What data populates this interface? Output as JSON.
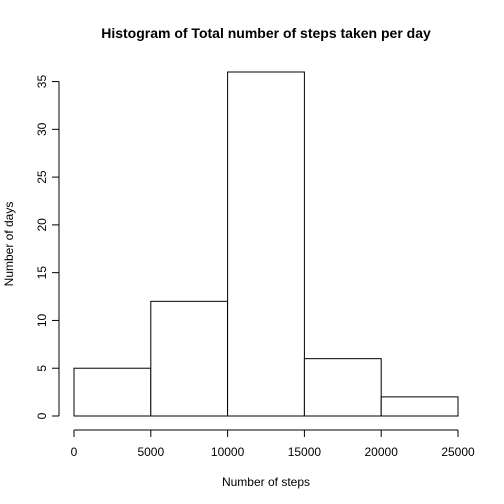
{
  "chart_data": {
    "type": "bar",
    "title": "Histogram of Total number of steps taken per day",
    "xlabel": "Number of steps",
    "ylabel": "Number of days",
    "bins": [
      {
        "from": 0,
        "to": 5000,
        "count": 5
      },
      {
        "from": 5000,
        "to": 10000,
        "count": 12
      },
      {
        "from": 10000,
        "to": 15000,
        "count": 36
      },
      {
        "from": 15000,
        "to": 20000,
        "count": 6
      },
      {
        "from": 20000,
        "to": 25000,
        "count": 2
      }
    ],
    "xlim": [
      0,
      25000
    ],
    "ylim": [
      0,
      36
    ],
    "x_ticks": [
      0,
      5000,
      10000,
      15000,
      20000,
      25000
    ],
    "y_ticks": [
      0,
      5,
      10,
      15,
      20,
      25,
      30,
      35
    ],
    "grid": false,
    "colors": {
      "bar_fill": "#ffffff",
      "bar_stroke": "#000000"
    }
  }
}
